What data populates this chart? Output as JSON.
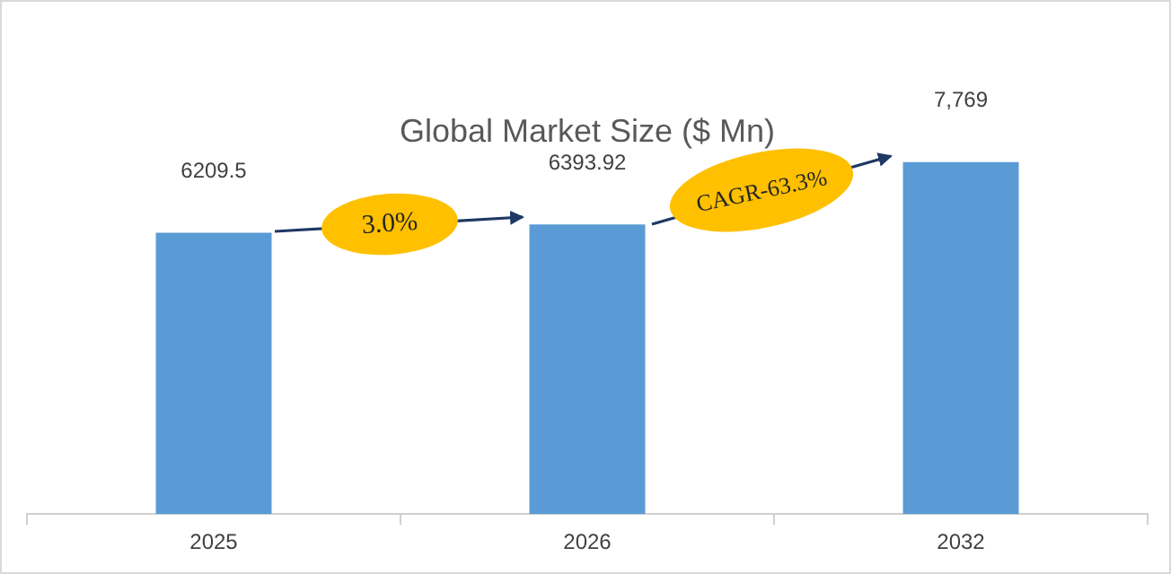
{
  "chart_data": {
    "type": "bar",
    "title": "Global Market Size ($ Mn)",
    "categories": [
      "2025",
      "2026",
      "2032"
    ],
    "values": [
      6209.5,
      6393.92,
      7769
    ],
    "value_labels": [
      "6209.5",
      "6393.92",
      "7,769"
    ],
    "color": "#5b9bd5",
    "annotations": [
      "3.0%",
      "CAGR-63.3%"
    ],
    "legend": false
  }
}
